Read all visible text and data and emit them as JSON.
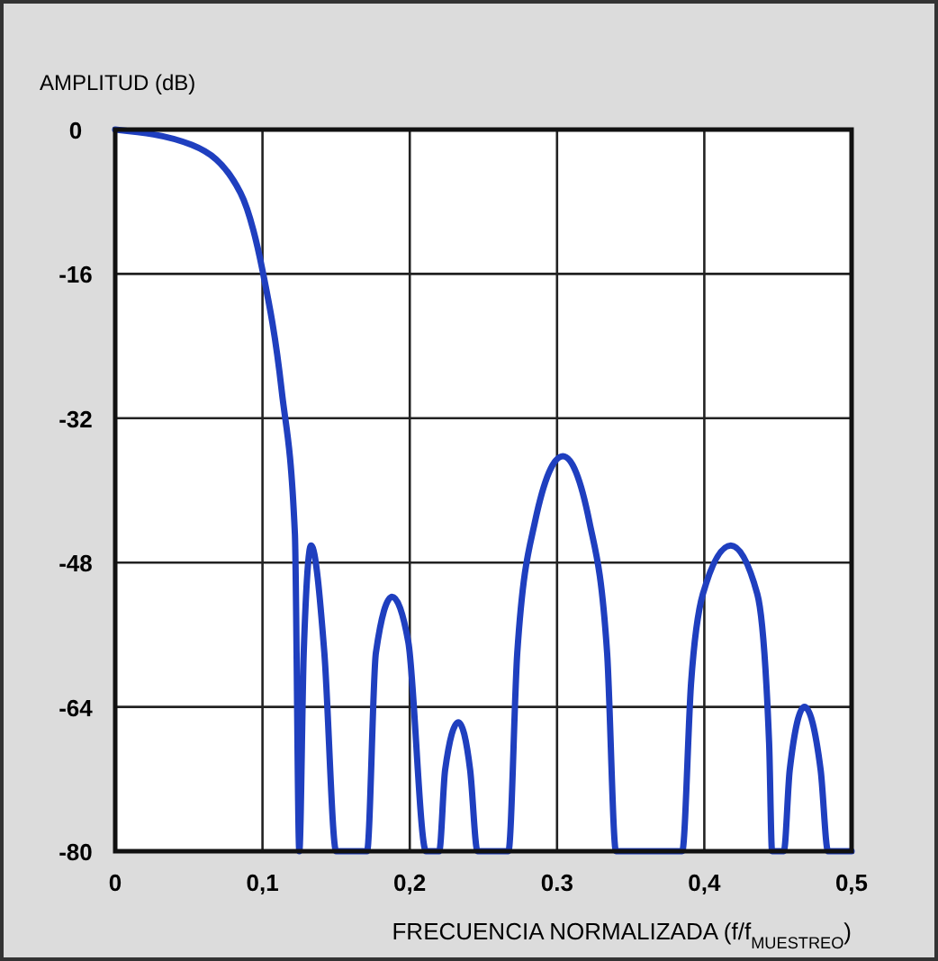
{
  "chart_data": {
    "type": "line",
    "ylabel": "AMPLITUD (dB)",
    "xlabel": "FRECUENCIA NORMALIZADA (f/f$_{MUESTREO}$)",
    "xlim": [
      0,
      0.5
    ],
    "xticks": [
      0,
      {
        "value": 0.1,
        "label": "0,1"
      },
      {
        "value": 0.2,
        "label": "0,2"
      },
      {
        "value": 0.3,
        "label": "0.3"
      },
      {
        "value": 0.4,
        "label": "0,4"
      },
      {
        "value": 0.5,
        "label": "0,5"
      }
    ],
    "ylim": [
      -80,
      0
    ],
    "yticks": [
      -80,
      -64,
      -48,
      -32,
      -16,
      0
    ],
    "grid": true,
    "marker": "none",
    "line_style": "solid",
    "series": [
      {
        "color": "#1f3fbf",
        "x": [
          0,
          0.052,
          0.085,
          0.1,
          0.113,
          0.122,
          0.125,
          0.128,
          0.133,
          0.142,
          0.15,
          0.167,
          0.171,
          0.177,
          0.188,
          0.199,
          0.211,
          0.216,
          0.22,
          0.224,
          0.233,
          0.241,
          0.246,
          0.264,
          0.267,
          0.273,
          0.285,
          0.304,
          0.322,
          0.334,
          0.34,
          0.383,
          0.385,
          0.391,
          0.399,
          0.418,
          0.436,
          0.444,
          0.446,
          0.452,
          0.454,
          0.458,
          0.468,
          0.479,
          0.484,
          0.5
        ],
        "values": [
          0,
          -1.7,
          -7,
          -15.6,
          -28.9,
          -44.8,
          -80,
          -58,
          -46.1,
          -58,
          -80,
          -80,
          -80,
          -58,
          -51.8,
          -56.8,
          -80,
          -80,
          -80,
          -71,
          -65.7,
          -71,
          -80,
          -80,
          -80,
          -58,
          -43.5,
          -36.2,
          -43.5,
          -58,
          -80,
          -80,
          -80,
          -61.4,
          -51.5,
          -46.1,
          -51.5,
          -68,
          -80,
          -80,
          -80,
          -71,
          -64,
          -71,
          -80,
          -80
        ]
      }
    ]
  }
}
